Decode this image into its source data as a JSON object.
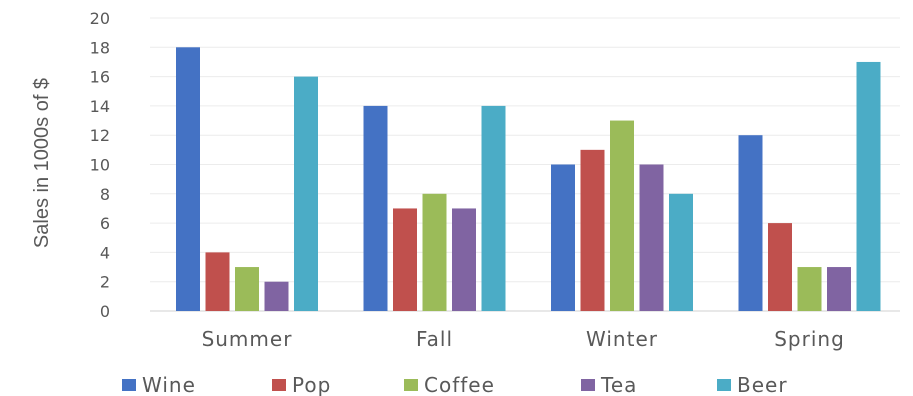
{
  "chart_data": {
    "type": "bar",
    "title": "",
    "xlabel": "",
    "ylabel": "Sales in 1000s of $",
    "ylim": [
      0,
      20
    ],
    "yticks": [
      0,
      2,
      4,
      6,
      8,
      10,
      12,
      14,
      16,
      18,
      20
    ],
    "grid": true,
    "legend_position": "bottom",
    "categories": [
      "Summer",
      "Fall",
      "Winter",
      "Spring"
    ],
    "series": [
      {
        "name": "Wine",
        "color": "#4472C4",
        "values": [
          18,
          14,
          10,
          12
        ]
      },
      {
        "name": "Pop",
        "color": "#C0504D",
        "values": [
          4,
          7,
          11,
          6
        ]
      },
      {
        "name": "Coffee",
        "color": "#9BBB59",
        "values": [
          3,
          8,
          13,
          3
        ]
      },
      {
        "name": "Tea",
        "color": "#8064A2",
        "values": [
          2,
          7,
          10,
          3
        ]
      },
      {
        "name": "Beer",
        "color": "#4BACC6",
        "values": [
          16,
          14,
          8,
          17
        ]
      }
    ]
  }
}
